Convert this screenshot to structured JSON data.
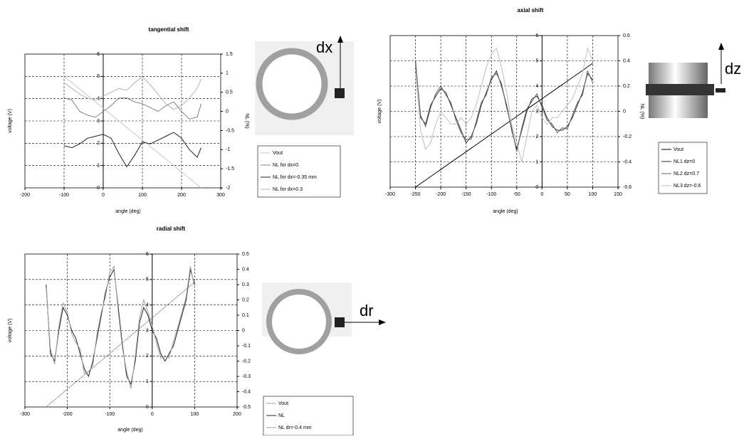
{
  "chart_data": [
    {
      "type": "line",
      "title": "tangential shift",
      "x_label": "angle (deg)",
      "y_label": "voltage (V)",
      "y2_label": "NL (%)",
      "annotations": [
        "dx"
      ],
      "x": [
        -100,
        -80,
        -60,
        -40,
        -20,
        0,
        20,
        40,
        60,
        80,
        100,
        120,
        140,
        160,
        180,
        200,
        220,
        240,
        250
      ],
      "series": [
        {
          "name": "Vout",
          "color": "#c8c8c8",
          "values": [
            5,
            4.71,
            4.43,
            4.14,
            3.86,
            3.57,
            3.29,
            3.0,
            2.71,
            2.43,
            2.14,
            1.86,
            1.57,
            1.29,
            1.0,
            0.71,
            0.43,
            0.14,
            0.0
          ]
        },
        {
          "name": "NL for dx=0",
          "color": "#808080",
          "axis": "y2",
          "values": [
            0.35,
            0.3,
            0.0,
            -0.1,
            -0.15,
            0.0,
            0.15,
            0.35,
            0.35,
            0.25,
            0.2,
            0.1,
            0.0,
            0.15,
            0.25,
            0.0,
            -0.2,
            -0.15,
            0.2
          ]
        },
        {
          "name": "NL for dx=-0.35 mm",
          "color": "#202020",
          "axis": "y2",
          "values": [
            -0.9,
            -0.95,
            -0.85,
            -0.7,
            -0.65,
            -0.6,
            -0.7,
            -1.1,
            -1.45,
            -1.15,
            -0.8,
            -0.85,
            -0.75,
            -0.65,
            -0.55,
            -0.7,
            -1.0,
            -1.2,
            -0.95
          ]
        },
        {
          "name": "NL for dx=0.3",
          "color": "#b4b4b4",
          "axis": "y2",
          "values": [
            0.75,
            0.6,
            0.45,
            0.35,
            0.3,
            0.4,
            0.5,
            0.6,
            0.55,
            0.75,
            0.9,
            0.7,
            0.45,
            0.2,
            0.05,
            0.15,
            0.35,
            0.6,
            0.85
          ]
        }
      ],
      "xlim": [
        -200,
        300
      ],
      "xticks": [
        -200,
        -100,
        0,
        100,
        200,
        300
      ],
      "ylim": [
        0,
        6
      ],
      "yticks": [
        0,
        1,
        2,
        3,
        4,
        5,
        6
      ],
      "y2lim": [
        -2,
        1.5
      ],
      "y2ticks": [
        -2,
        -1.5,
        -1,
        -0.5,
        0,
        0.5,
        1,
        1.5
      ],
      "grid": true
    },
    {
      "type": "line",
      "title": "axial shift",
      "x_label": "angle (deg)",
      "y_label": "voltage (V)",
      "y2_label": "NL (%)",
      "annotations": [
        "dz"
      ],
      "x": [
        -250,
        -240,
        -230,
        -220,
        -210,
        -200,
        -190,
        -180,
        -170,
        -160,
        -150,
        -140,
        -130,
        -120,
        -110,
        -100,
        -90,
        -80,
        -70,
        -60,
        -50,
        -40,
        -30,
        -20,
        -10,
        0,
        10,
        20,
        30,
        40,
        50,
        60,
        70,
        80,
        90,
        100
      ],
      "series": [
        {
          "name": "Vout",
          "color": "#000000",
          "values": [
            0,
            0.14,
            0.28,
            0.42,
            0.56,
            0.7,
            0.84,
            0.98,
            1.12,
            1.26,
            1.4,
            1.54,
            1.68,
            1.82,
            1.96,
            2.1,
            2.24,
            2.38,
            2.52,
            2.66,
            2.8,
            2.94,
            3.08,
            3.22,
            3.36,
            3.5,
            3.64,
            3.78,
            3.92,
            4.06,
            4.2,
            4.34,
            4.48,
            4.62,
            4.76,
            4.9
          ]
        },
        {
          "name": "NL1 dz=0",
          "color": "#303030",
          "axis": "y2",
          "values": [
            0.4,
            -0.05,
            -0.1,
            0.05,
            0.12,
            0.18,
            0.15,
            0.05,
            -0.05,
            -0.15,
            -0.25,
            -0.2,
            -0.1,
            0.05,
            0.15,
            0.25,
            0.32,
            0.2,
            0.05,
            -0.15,
            -0.3,
            -0.15,
            0.0,
            0.1,
            0.12,
            0.05,
            -0.05,
            -0.12,
            -0.15,
            -0.15,
            -0.12,
            -0.05,
            0.05,
            0.15,
            0.3,
            0.25
          ]
        },
        {
          "name": "NL2 dz=0.7",
          "color": "#606060",
          "axis": "y2",
          "values": [
            0.38,
            -0.03,
            -0.12,
            0.03,
            0.14,
            0.2,
            0.13,
            0.07,
            -0.07,
            -0.17,
            -0.22,
            -0.22,
            -0.08,
            0.07,
            0.13,
            0.27,
            0.3,
            0.22,
            0.03,
            -0.13,
            -0.32,
            -0.13,
            0.02,
            0.08,
            0.14,
            0.03,
            -0.07,
            -0.1,
            -0.17,
            -0.13,
            -0.14,
            -0.03,
            0.07,
            0.13,
            0.32,
            0.23
          ]
        },
        {
          "name": "NL3 dz=-0.6",
          "color": "#c0c0c0",
          "axis": "y2",
          "values": [
            0.3,
            -0.15,
            -0.3,
            -0.25,
            -0.1,
            0.0,
            -0.05,
            -0.1,
            -0.1,
            -0.05,
            -0.1,
            -0.05,
            0.05,
            0.2,
            0.35,
            0.45,
            0.5,
            0.35,
            0.15,
            -0.1,
            -0.25,
            -0.4,
            -0.2,
            0.0,
            0.05,
            -0.05,
            -0.1,
            -0.05,
            -0.05,
            0.0,
            0.05,
            0.1,
            0.2,
            0.3,
            0.5,
            0.4
          ]
        }
      ],
      "xlim": [
        -300,
        150
      ],
      "xticks": [
        -300,
        -250,
        -200,
        -150,
        -100,
        -50,
        0,
        50,
        100,
        150
      ],
      "ylim": [
        0,
        6
      ],
      "yticks": [
        0,
        1,
        2,
        3,
        4,
        5,
        6
      ],
      "y2lim": [
        -0.6,
        0.6
      ],
      "y2ticks": [
        -0.6,
        -0.4,
        -0.2,
        0,
        0.2,
        0.4,
        0.6
      ],
      "grid": true
    },
    {
      "type": "line",
      "title": "radial shift",
      "x_label": "angle (deg)",
      "y_label": "voltage (V)",
      "annotations": [
        "dr"
      ],
      "x": [
        -250,
        -240,
        -230,
        -220,
        -210,
        -200,
        -190,
        -180,
        -170,
        -160,
        -150,
        -140,
        -130,
        -120,
        -110,
        -100,
        -90,
        -80,
        -70,
        -60,
        -50,
        -40,
        -30,
        -20,
        -10,
        0,
        10,
        20,
        30,
        40,
        50,
        60,
        70,
        80,
        90,
        100
      ],
      "series": [
        {
          "name": "Vout",
          "color": "#505050",
          "style": "dotted",
          "values": [
            0,
            0.14,
            0.28,
            0.42,
            0.56,
            0.7,
            0.84,
            0.98,
            1.12,
            1.26,
            1.4,
            1.54,
            1.68,
            1.82,
            1.96,
            2.1,
            2.24,
            2.38,
            2.52,
            2.66,
            2.8,
            2.94,
            3.08,
            3.22,
            3.36,
            3.5,
            3.64,
            3.78,
            3.92,
            4.06,
            4.2,
            4.34,
            4.48,
            4.62,
            4.76,
            4.9
          ]
        },
        {
          "name": "NL",
          "color": "#202020",
          "axis": "y2",
          "values": [
            0.3,
            -0.15,
            -0.2,
            0.0,
            0.15,
            0.1,
            0.0,
            -0.05,
            -0.15,
            -0.25,
            -0.3,
            -0.2,
            -0.05,
            0.1,
            0.25,
            0.35,
            0.4,
            0.15,
            -0.1,
            -0.3,
            -0.35,
            -0.2,
            0.05,
            0.15,
            0.1,
            0.0,
            -0.05,
            -0.15,
            -0.2,
            -0.15,
            -0.1,
            0.0,
            0.1,
            0.2,
            0.4,
            0.3
          ]
        },
        {
          "name": "NL dr=-0.4 mm",
          "color": "#a0a0a0",
          "axis": "y2",
          "values": [
            0.28,
            -0.12,
            -0.22,
            0.03,
            0.18,
            0.12,
            -0.02,
            -0.08,
            -0.12,
            -0.28,
            -0.27,
            -0.23,
            -0.02,
            0.12,
            0.22,
            0.38,
            0.42,
            0.12,
            -0.12,
            -0.27,
            -0.38,
            -0.17,
            0.08,
            0.2,
            0.12,
            0.03,
            -0.08,
            -0.18,
            -0.17,
            -0.18,
            -0.07,
            0.02,
            0.12,
            0.22,
            0.42,
            0.28
          ]
        }
      ],
      "xlim": [
        -300,
        200
      ],
      "xticks": [
        -300,
        -200,
        -100,
        0,
        100,
        200
      ],
      "ylim": [
        0,
        6
      ],
      "yticks": [
        0,
        1,
        2,
        3,
        4,
        5,
        6
      ],
      "y2lim": [
        -0.5,
        0.5
      ],
      "y2ticks": [
        -0.5,
        -0.4,
        -0.3,
        -0.2,
        -0.1,
        0,
        0.1,
        0.2,
        0.3,
        0.4,
        0.5
      ],
      "grid": true
    }
  ]
}
